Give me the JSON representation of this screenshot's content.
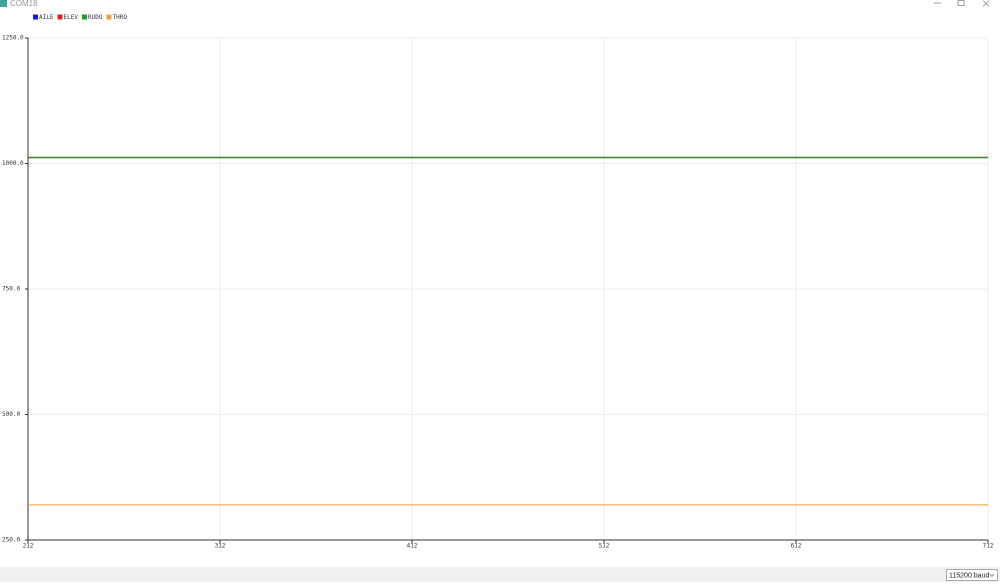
{
  "window": {
    "title": "COM18"
  },
  "chart_data": {
    "type": "line",
    "x": [
      212,
      312,
      412,
      512,
      612,
      712
    ],
    "series": [
      {
        "name": "AILE",
        "color": "#1a1acc",
        "values": [
          1012,
          1012,
          1012,
          1012,
          1012,
          1012
        ]
      },
      {
        "name": "ELEV",
        "color": "#e02020",
        "values": [
          1012,
          1012,
          1012,
          1012,
          1012,
          1012
        ]
      },
      {
        "name": "RUDO",
        "color": "#20a020",
        "values": [
          1012,
          1012,
          1012,
          1012,
          1012,
          1012
        ]
      },
      {
        "name": "THRO",
        "color": "#f0a040",
        "values": [
          320,
          320,
          320,
          320,
          320,
          320
        ]
      }
    ],
    "xlim": [
      212,
      712
    ],
    "xticks": [
      212,
      312,
      412,
      512,
      612,
      712
    ],
    "ylim": [
      250,
      1250
    ],
    "yticks": [
      {
        "value": 250,
        "label": "250.0"
      },
      {
        "value": 500,
        "label": "500.0"
      },
      {
        "value": 750,
        "label": "750.0"
      },
      {
        "value": 1000,
        "label": "1000.0"
      },
      {
        "value": 1250,
        "label": "1250.0"
      }
    ],
    "grid": true
  },
  "status_bar": {
    "baud": "115200 baud"
  }
}
